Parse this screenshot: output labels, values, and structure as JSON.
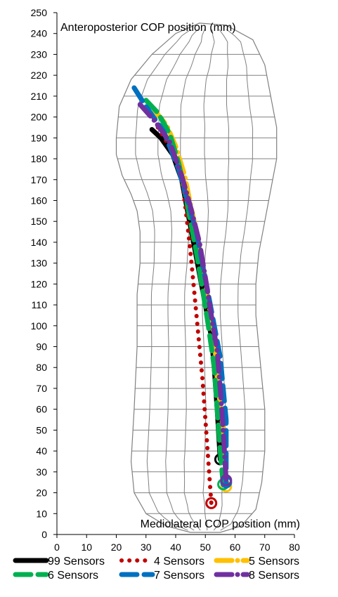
{
  "chart_data": {
    "type": "line",
    "x_axis": {
      "label": "Mediolateral COP position (mm)",
      "range": [
        0,
        80
      ],
      "ticks": [
        0,
        10,
        20,
        30,
        40,
        50,
        60,
        70,
        80
      ]
    },
    "y_axis": {
      "label": "Anteroposterior COP position (mm)",
      "range": [
        0,
        250
      ],
      "ticks": [
        0,
        10,
        20,
        30,
        40,
        50,
        60,
        70,
        80,
        90,
        100,
        110,
        120,
        130,
        140,
        150,
        160,
        170,
        180,
        190,
        200,
        210,
        220,
        230,
        240,
        250
      ]
    },
    "grid": false,
    "legend_position": "bottom",
    "background": "foot outline with sensor grid",
    "series": [
      {
        "name": "99 Sensors",
        "color": "#000000",
        "style": "solid",
        "x": [
          32,
          35,
          39,
          42,
          44,
          46,
          48,
          50,
          52,
          53,
          54,
          55
        ],
        "y": [
          194,
          190,
          182,
          170,
          155,
          140,
          125,
          110,
          95,
          80,
          60,
          36
        ],
        "end_marker": [
          55,
          36
        ]
      },
      {
        "name": "4 Sensors",
        "color": "#c00000",
        "style": "dotted",
        "x": [
          34,
          37,
          40,
          42,
          43,
          44,
          45,
          46,
          47,
          48,
          49,
          50,
          51,
          52
        ],
        "y": [
          195,
          188,
          180,
          170,
          160,
          148,
          135,
          120,
          105,
          90,
          75,
          55,
          35,
          15
        ],
        "end_marker": [
          52,
          15
        ]
      },
      {
        "name": "5 Sensors",
        "color": "#ffc000",
        "style": "long-dash-dot",
        "x": [
          33,
          37,
          40,
          43,
          45,
          47,
          49,
          51,
          53,
          54,
          56,
          57
        ],
        "y": [
          203,
          196,
          186,
          172,
          158,
          145,
          130,
          112,
          95,
          75,
          50,
          23
        ],
        "end_marker": [
          57,
          23
        ]
      },
      {
        "name": "6 Sensors",
        "color": "#00b050",
        "style": "long-dash",
        "x": [
          30,
          34,
          38,
          41,
          43,
          45,
          47,
          49,
          51,
          53,
          54,
          55,
          56
        ],
        "y": [
          208,
          202,
          192,
          178,
          165,
          150,
          135,
          118,
          100,
          80,
          60,
          40,
          24
        ],
        "end_marker": [
          56,
          24
        ]
      },
      {
        "name": "7 Sensors",
        "color": "#0070c0",
        "style": "long-dash",
        "x": [
          26,
          30,
          36,
          41,
          44,
          47,
          49,
          51,
          53,
          55,
          56,
          57,
          57
        ],
        "y": [
          214,
          205,
          193,
          175,
          160,
          145,
          130,
          115,
          100,
          85,
          70,
          55,
          25
        ],
        "end_marker": [
          57,
          25
        ]
      },
      {
        "name": "8 Sensors",
        "color": "#7030a0",
        "style": "long-dash-dot",
        "x": [
          28,
          33,
          38,
          42,
          45,
          48,
          50,
          52,
          54,
          55,
          56,
          57
        ],
        "y": [
          206,
          198,
          188,
          172,
          157,
          140,
          123,
          105,
          88,
          70,
          50,
          26
        ],
        "end_marker": [
          57,
          26
        ]
      }
    ]
  }
}
